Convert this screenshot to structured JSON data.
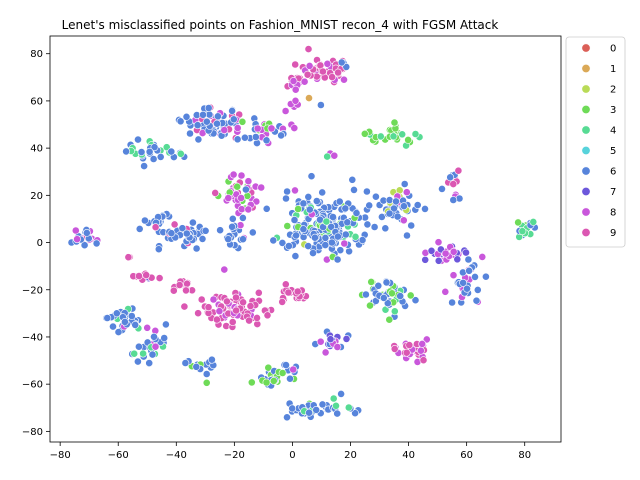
{
  "chart_data": {
    "type": "scatter",
    "title": "Lenet's misclassified points on Fashion_MNIST recon_4 with FGSM Attack",
    "xlabel": "",
    "ylabel": "",
    "xlim": [
      -83.5,
      92.5
    ],
    "ylim": [
      -84.5,
      87.5
    ],
    "xticks": [
      -80,
      -60,
      -40,
      -20,
      0,
      20,
      40,
      60,
      80
    ],
    "yticks": [
      -80,
      -60,
      -40,
      -20,
      0,
      20,
      40,
      60,
      80
    ],
    "grid": false,
    "legend_position": "outside-top-right",
    "classes": [
      {
        "name": "0",
        "color": "#db5f57"
      },
      {
        "name": "1",
        "color": "#dba957"
      },
      {
        "name": "2",
        "color": "#b9db57"
      },
      {
        "name": "3",
        "color": "#6edb57"
      },
      {
        "name": "4",
        "color": "#57db94"
      },
      {
        "name": "5",
        "color": "#57d3db"
      },
      {
        "name": "6",
        "color": "#5784db"
      },
      {
        "name": "7",
        "color": "#6c57db"
      },
      {
        "name": "8",
        "color": "#c957db"
      },
      {
        "name": "9",
        "color": "#db57b2"
      }
    ],
    "clusters": [
      {
        "x": 12,
        "y": 73,
        "sx": 4,
        "sy": 3,
        "n": 50,
        "mix": [
          [
            9,
            0.75
          ],
          [
            8,
            0.25
          ]
        ]
      },
      {
        "x": 2,
        "y": 67,
        "sx": 2,
        "sy": 2,
        "n": 18,
        "mix": [
          [
            8,
            0.6
          ],
          [
            9,
            0.4
          ]
        ]
      },
      {
        "x": 18,
        "y": 77,
        "sx": 1,
        "sy": 1,
        "n": 3,
        "mix": [
          [
            6,
            1.0
          ]
        ]
      },
      {
        "x": 5,
        "y": 61,
        "sx": 0.5,
        "sy": 0.5,
        "n": 1,
        "mix": [
          [
            1,
            1.0
          ]
        ]
      },
      {
        "x": 10,
        "y": 58,
        "sx": 0.5,
        "sy": 0.5,
        "n": 1,
        "mix": [
          [
            6,
            1.0
          ]
        ]
      },
      {
        "x": 0,
        "y": 58,
        "sx": 1,
        "sy": 2,
        "n": 6,
        "mix": [
          [
            8,
            1.0
          ]
        ]
      },
      {
        "x": -28,
        "y": 51,
        "sx": 6,
        "sy": 3.5,
        "n": 70,
        "mix": [
          [
            6,
            0.75
          ],
          [
            8,
            0.15
          ],
          [
            9,
            0.1
          ]
        ]
      },
      {
        "x": -9,
        "y": 46,
        "sx": 4,
        "sy": 2.5,
        "n": 32,
        "mix": [
          [
            6,
            0.55
          ],
          [
            3,
            0.2
          ],
          [
            8,
            0.25
          ]
        ]
      },
      {
        "x": -48,
        "y": 38,
        "sx": 4,
        "sy": 2,
        "n": 30,
        "mix": [
          [
            6,
            0.6
          ],
          [
            4,
            0.4
          ]
        ]
      },
      {
        "x": 35,
        "y": 46,
        "sx": 4,
        "sy": 2,
        "n": 28,
        "mix": [
          [
            3,
            0.6
          ],
          [
            4,
            0.4
          ]
        ]
      },
      {
        "x": 12,
        "y": 37,
        "sx": 2,
        "sy": 0.6,
        "n": 4,
        "mix": [
          [
            8,
            0.7
          ],
          [
            4,
            0.3
          ]
        ]
      },
      {
        "x": -19,
        "y": 20,
        "sx": 3.5,
        "sy": 4,
        "n": 45,
        "mix": [
          [
            8,
            0.6
          ],
          [
            3,
            0.25
          ],
          [
            9,
            0.15
          ]
        ]
      },
      {
        "x": -20,
        "y": 3,
        "sx": 2.5,
        "sy": 4,
        "n": 22,
        "mix": [
          [
            6,
            0.8
          ],
          [
            3,
            0.1
          ],
          [
            8,
            0.1
          ]
        ]
      },
      {
        "x": 11,
        "y": 7,
        "sx": 7,
        "sy": 7,
        "n": 200,
        "mix": [
          [
            6,
            0.8
          ],
          [
            4,
            0.08
          ],
          [
            3,
            0.06
          ],
          [
            2,
            0.03
          ],
          [
            8,
            0.03
          ]
        ]
      },
      {
        "x": 34,
        "y": 15,
        "sx": 4,
        "sy": 4,
        "n": 45,
        "mix": [
          [
            6,
            0.75
          ],
          [
            8,
            0.15
          ],
          [
            2,
            0.1
          ]
        ]
      },
      {
        "x": -47,
        "y": 10,
        "sx": 2.5,
        "sy": 1.5,
        "n": 15,
        "mix": [
          [
            6,
            1.0
          ]
        ]
      },
      {
        "x": -38,
        "y": 3,
        "sx": 5,
        "sy": 2.5,
        "n": 40,
        "mix": [
          [
            6,
            0.9
          ],
          [
            9,
            0.1
          ]
        ]
      },
      {
        "x": -72,
        "y": 2,
        "sx": 2,
        "sy": 1.5,
        "n": 22,
        "mix": [
          [
            6,
            0.45
          ],
          [
            8,
            0.3
          ],
          [
            9,
            0.25
          ]
        ]
      },
      {
        "x": 55,
        "y": 26,
        "sx": 1.5,
        "sy": 2,
        "n": 10,
        "mix": [
          [
            6,
            0.5
          ],
          [
            9,
            0.5
          ]
        ]
      },
      {
        "x": 57,
        "y": 19,
        "sx": 1,
        "sy": 0.8,
        "n": 4,
        "mix": [
          [
            6,
            0.5
          ],
          [
            8,
            0.5
          ]
        ]
      },
      {
        "x": 80,
        "y": 5,
        "sx": 2,
        "sy": 2,
        "n": 14,
        "mix": [
          [
            6,
            0.45
          ],
          [
            4,
            0.35
          ],
          [
            3,
            0.2
          ]
        ]
      },
      {
        "x": 53,
        "y": -4,
        "sx": 4,
        "sy": 2,
        "n": 30,
        "mix": [
          [
            7,
            0.5
          ],
          [
            8,
            0.5
          ]
        ]
      },
      {
        "x": 60,
        "y": -17,
        "sx": 3,
        "sy": 4,
        "n": 30,
        "mix": [
          [
            6,
            0.6
          ],
          [
            8,
            0.4
          ]
        ]
      },
      {
        "x": -56,
        "y": -6,
        "sx": 1,
        "sy": 0.5,
        "n": 3,
        "mix": [
          [
            9,
            1.0
          ]
        ]
      },
      {
        "x": -49,
        "y": -14,
        "sx": 3,
        "sy": 1.5,
        "n": 12,
        "mix": [
          [
            9,
            0.8
          ],
          [
            7,
            0.2
          ]
        ]
      },
      {
        "x": -38,
        "y": -18,
        "sx": 2,
        "sy": 1.5,
        "n": 12,
        "mix": [
          [
            9,
            1.0
          ]
        ]
      },
      {
        "x": 2,
        "y": -22,
        "sx": 3,
        "sy": 2,
        "n": 20,
        "mix": [
          [
            9,
            1.0
          ]
        ]
      },
      {
        "x": -20,
        "y": -28,
        "sx": 5.5,
        "sy": 3.5,
        "n": 80,
        "mix": [
          [
            9,
            0.85
          ],
          [
            8,
            0.15
          ]
        ]
      },
      {
        "x": 33,
        "y": -22,
        "sx": 5,
        "sy": 4,
        "n": 45,
        "mix": [
          [
            6,
            0.55
          ],
          [
            3,
            0.25
          ],
          [
            4,
            0.2
          ]
        ]
      },
      {
        "x": -58,
        "y": -33,
        "sx": 4,
        "sy": 3,
        "n": 30,
        "mix": [
          [
            6,
            0.8
          ],
          [
            8,
            0.1
          ],
          [
            4,
            0.1
          ]
        ]
      },
      {
        "x": 14,
        "y": -42,
        "sx": 3,
        "sy": 2,
        "n": 20,
        "mix": [
          [
            7,
            0.5
          ],
          [
            8,
            0.3
          ],
          [
            6,
            0.2
          ]
        ]
      },
      {
        "x": 42,
        "y": -46,
        "sx": 3,
        "sy": 2.5,
        "n": 35,
        "mix": [
          [
            9,
            0.55
          ],
          [
            8,
            0.45
          ]
        ]
      },
      {
        "x": -49,
        "y": -44,
        "sx": 3,
        "sy": 4,
        "n": 28,
        "mix": [
          [
            6,
            0.6
          ],
          [
            4,
            0.25
          ],
          [
            8,
            0.15
          ]
        ]
      },
      {
        "x": -31,
        "y": -53,
        "sx": 2.5,
        "sy": 2,
        "n": 15,
        "mix": [
          [
            6,
            0.7
          ],
          [
            3,
            0.3
          ]
        ]
      },
      {
        "x": -6,
        "y": -57,
        "sx": 3,
        "sy": 2,
        "n": 25,
        "mix": [
          [
            3,
            0.7
          ],
          [
            6,
            0.3
          ]
        ]
      },
      {
        "x": 0,
        "y": -54,
        "sx": 1,
        "sy": 2,
        "n": 5,
        "mix": [
          [
            8,
            0.5
          ],
          [
            6,
            0.5
          ]
        ]
      },
      {
        "x": 1,
        "y": -71,
        "sx": 2.5,
        "sy": 2,
        "n": 20,
        "mix": [
          [
            6,
            0.9
          ],
          [
            3,
            0.1
          ]
        ]
      },
      {
        "x": 12,
        "y": -70,
        "sx": 4,
        "sy": 1.5,
        "n": 25,
        "mix": [
          [
            6,
            0.85
          ],
          [
            4,
            0.15
          ]
        ]
      }
    ]
  }
}
